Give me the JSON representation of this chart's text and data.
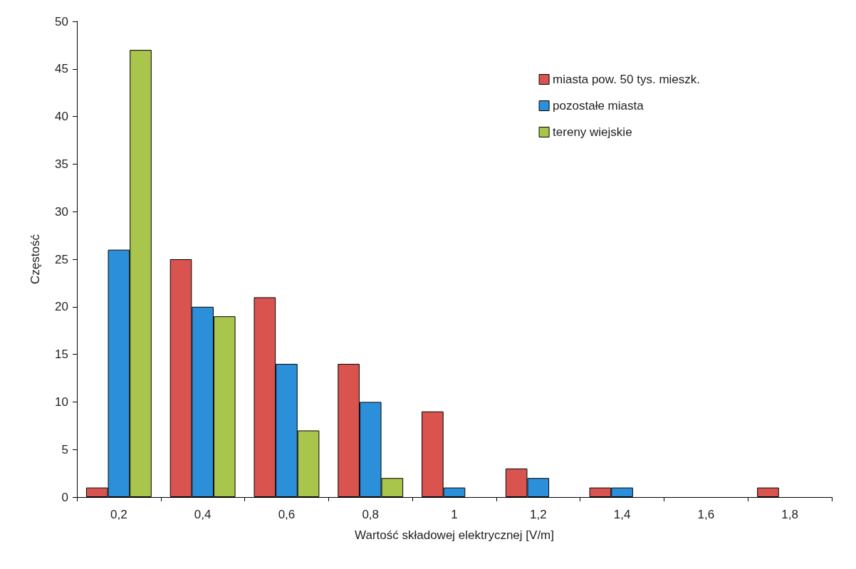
{
  "chart_data": {
    "type": "bar",
    "xlabel": "Wartość składowej elektrycznej [V/m]",
    "ylabel": "Częstość",
    "categories": [
      "0,2",
      "0,4",
      "0,6",
      "0,8",
      "1",
      "1,2",
      "1,4",
      "1,6",
      "1,8"
    ],
    "series": [
      {
        "name": "miasta pow. 50 tys. mieszk.",
        "color": "#d9534f",
        "values": [
          1,
          25,
          21,
          14,
          9,
          3,
          1,
          0,
          1
        ]
      },
      {
        "name": "pozostałe miasta",
        "color": "#2b90d9",
        "values": [
          26,
          20,
          14,
          10,
          1,
          2,
          1,
          0,
          0
        ]
      },
      {
        "name": "tereny wiejskie",
        "color": "#a9c54b",
        "values": [
          47,
          19,
          7,
          2,
          0,
          0,
          0,
          0,
          0
        ]
      }
    ],
    "ylim": [
      0,
      50
    ],
    "yticks": [
      0,
      5,
      10,
      15,
      20,
      25,
      30,
      35,
      40,
      45,
      50
    ],
    "grid": false,
    "legend": "top right"
  }
}
